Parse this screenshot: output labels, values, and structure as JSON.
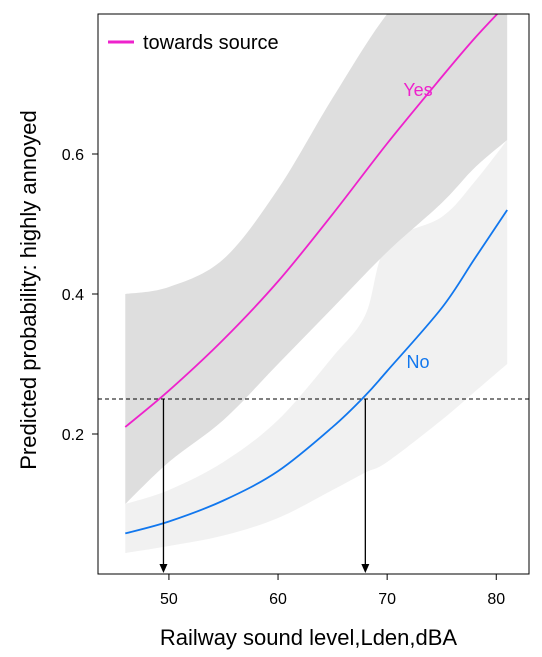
{
  "chart_data": {
    "type": "line",
    "xlabel": "Railway sound level,Lden,dBA",
    "ylabel": "Predicted probability: highly annoyed",
    "xlim": [
      43.5,
      83
    ],
    "ylim": [
      0,
      0.8
    ],
    "xticks": [
      50,
      60,
      70,
      80
    ],
    "yticks": [
      0.2,
      0.4,
      0.6
    ],
    "ytick_labels": [
      "0.2",
      "0.4",
      "0.6"
    ],
    "grid": false,
    "legend": {
      "position": "top-left",
      "title": "towards source",
      "color": "#ee22cc"
    },
    "reference_line": {
      "y": 0.25,
      "style": "dashed",
      "color": "#000000"
    },
    "arrows": [
      {
        "x": 49.5,
        "y_from": 0.25,
        "y_to": 0.0
      },
      {
        "x": 68.0,
        "y_from": 0.25,
        "y_to": 0.0
      }
    ],
    "series": [
      {
        "name": "Yes",
        "color": "#ee22cc",
        "band_color": "#dedede",
        "x": [
          46,
          50,
          55,
          60,
          65,
          70,
          75,
          78,
          81
        ],
        "y": [
          0.21,
          0.262,
          0.335,
          0.418,
          0.514,
          0.615,
          0.71,
          0.765,
          0.815
        ],
        "ci_low": [
          0.1,
          0.16,
          0.22,
          0.3,
          0.38,
          0.46,
          0.53,
          0.58,
          0.62
        ],
        "ci_high": [
          0.4,
          0.41,
          0.45,
          0.55,
          0.68,
          0.8,
          0.88,
          0.88,
          0.88
        ]
      },
      {
        "name": "No",
        "color": "#1177ee",
        "band_color": "#f1f1f1",
        "x": [
          46,
          50,
          55,
          60,
          65,
          68,
          70,
          75,
          78,
          81
        ],
        "y": [
          0.058,
          0.075,
          0.105,
          0.147,
          0.21,
          0.255,
          0.29,
          0.38,
          0.45,
          0.52
        ],
        "ci_low": [
          0.03,
          0.04,
          0.055,
          0.08,
          0.12,
          0.145,
          0.16,
          0.22,
          0.26,
          0.3
        ],
        "ci_high": [
          0.1,
          0.12,
          0.16,
          0.22,
          0.31,
          0.37,
          0.47,
          0.51,
          0.56,
          0.62
        ]
      }
    ]
  }
}
